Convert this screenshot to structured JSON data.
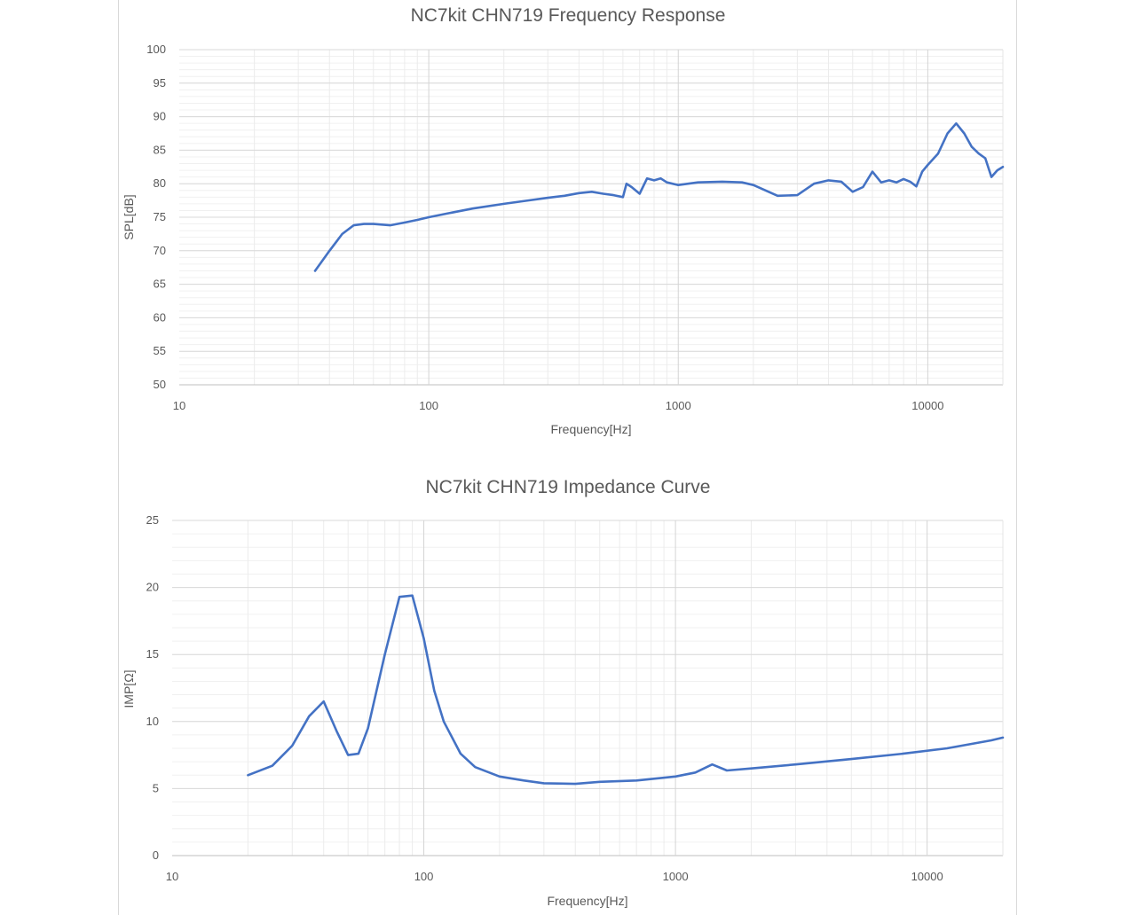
{
  "chart_data": [
    {
      "type": "line",
      "title": "NC7kit CHN719 Frequency Response",
      "xlabel": "Frequency[Hz]",
      "ylabel": "SPL[dB]",
      "xscale": "log",
      "xlim": [
        10,
        20000
      ],
      "ylim": [
        50,
        100
      ],
      "xticks": [
        10,
        100,
        1000,
        10000
      ],
      "yticks": [
        100,
        95,
        90,
        85,
        80,
        75,
        70,
        65,
        60,
        55,
        50
      ],
      "grid": true,
      "legend": "none",
      "color": "#4472c4",
      "series": [
        {
          "x": [
            35,
            40,
            45,
            50,
            55,
            60,
            70,
            80,
            90,
            100,
            120,
            150,
            200,
            250,
            300,
            350,
            400,
            450,
            500,
            550,
            600,
            620,
            650,
            700,
            750,
            800,
            850,
            900,
            1000,
            1200,
            1500,
            1800,
            2000,
            2500,
            3000,
            3500,
            4000,
            4500,
            5000,
            5500,
            6000,
            6500,
            7000,
            7500,
            8000,
            8500,
            9000,
            9500,
            10000,
            11000,
            12000,
            13000,
            14000,
            15000,
            16000,
            17000,
            18000,
            19000,
            20000
          ],
          "y": [
            67,
            70,
            72.5,
            73.8,
            74,
            74,
            73.8,
            74.2,
            74.6,
            75,
            75.6,
            76.3,
            77,
            77.5,
            77.9,
            78.2,
            78.6,
            78.8,
            78.5,
            78.3,
            78,
            80,
            79.5,
            78.5,
            80.8,
            80.5,
            80.8,
            80.2,
            79.8,
            80.2,
            80.3,
            80.2,
            79.8,
            78.2,
            78.3,
            80,
            80.5,
            80.3,
            78.8,
            79.5,
            81.8,
            80.2,
            80.5,
            80.2,
            80.7,
            80.3,
            79.6,
            81.8,
            82.8,
            84.5,
            87.5,
            89,
            87.5,
            85.5,
            84.5,
            83.8,
            81,
            82,
            82.5
          ]
        }
      ]
    },
    {
      "type": "line",
      "title": "NC7kit CHN719 Impedance Curve",
      "xlabel": "Frequency[Hz]",
      "ylabel": "IMP[Ω]",
      "xscale": "log",
      "xlim": [
        10,
        20000
      ],
      "ylim": [
        0,
        25
      ],
      "xticks": [
        10,
        100,
        1000,
        10000
      ],
      "yticks": [
        25,
        20,
        15,
        10,
        5,
        0
      ],
      "grid": true,
      "legend": "none",
      "color": "#4472c4",
      "series": [
        {
          "x": [
            20,
            25,
            30,
            35,
            40,
            45,
            50,
            55,
            60,
            70,
            80,
            90,
            100,
            110,
            120,
            140,
            160,
            200,
            250,
            300,
            400,
            500,
            700,
            1000,
            1200,
            1400,
            1600,
            2000,
            3000,
            5000,
            8000,
            12000,
            18000,
            20000
          ],
          "y": [
            6,
            6.7,
            8.2,
            10.4,
            11.5,
            9.3,
            7.5,
            7.6,
            9.5,
            15,
            19.3,
            19.4,
            16.2,
            12.3,
            10,
            7.6,
            6.6,
            5.9,
            5.6,
            5.4,
            5.35,
            5.5,
            5.6,
            5.9,
            6.2,
            6.8,
            6.35,
            6.5,
            6.8,
            7.2,
            7.6,
            8,
            8.6,
            8.8
          ]
        }
      ]
    }
  ]
}
